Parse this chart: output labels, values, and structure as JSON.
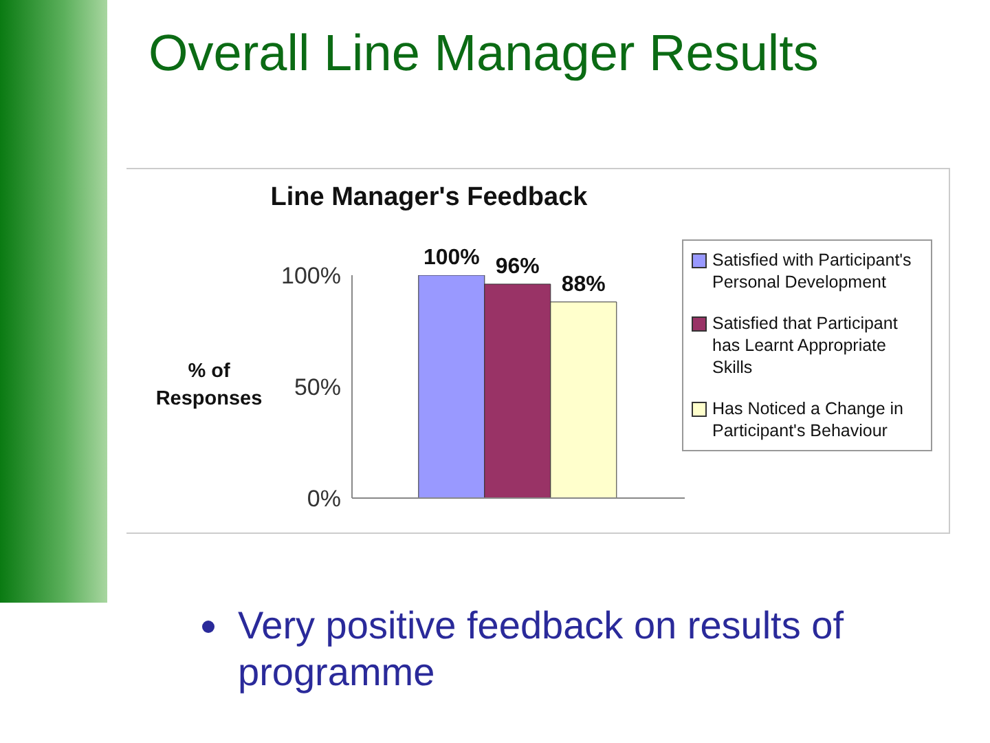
{
  "chart_data": {
    "type": "bar",
    "title": "Overall Line Manager Results",
    "subtitle": "Line Manager's Feedback",
    "ylabel": "% of Responses",
    "annotations": [
      "Very positive feedback on results of programme"
    ],
    "categories": [
      null
    ],
    "series": [
      {
        "name": "Satisfied with Participant's Personal Development",
        "color": "#9999ff",
        "values": [
          100
        ],
        "value_labels": [
          "100%"
        ]
      },
      {
        "name": "Satisfied that Participant has Learnt Appropriate Skills",
        "color": "#993366",
        "values": [
          96
        ],
        "value_labels": [
          "96%"
        ]
      },
      {
        "name": "Has Noticed a Change in Participant's Behaviour",
        "color": "#ffffcc",
        "values": [
          88
        ],
        "value_labels": [
          "88%"
        ]
      }
    ],
    "ylim": [
      0,
      100
    ],
    "yticks": [
      {
        "value": 0,
        "label": "0%"
      },
      {
        "value": 50,
        "label": "50%"
      },
      {
        "value": 100,
        "label": "100%"
      }
    ],
    "grid": false,
    "legend": "right",
    "data_labels": true
  }
}
